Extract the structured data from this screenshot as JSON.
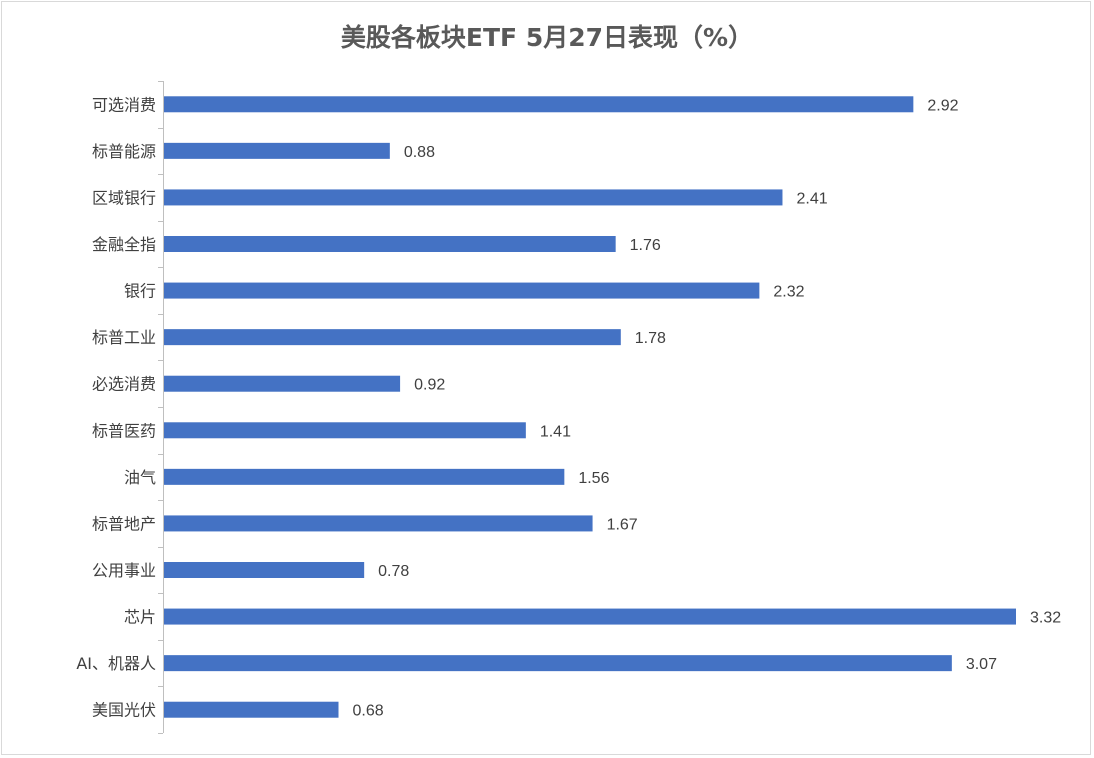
{
  "chart_data": {
    "type": "bar",
    "orientation": "horizontal",
    "title": "美股各板块ETF  5月27日表现（%）",
    "categories": [
      "可选消费",
      "标普能源",
      "区域银行",
      "金融全指",
      "银行",
      "标普工业",
      "必选消费",
      "标普医药",
      "油气",
      "标普地产",
      "公用事业",
      "芯片",
      "AI、机器人",
      "美国光伏"
    ],
    "values": [
      2.92,
      0.88,
      2.41,
      1.76,
      2.32,
      1.78,
      0.92,
      1.41,
      1.56,
      1.67,
      0.78,
      3.32,
      3.07,
      0.68
    ],
    "value_labels": [
      "2.92",
      "0.88",
      "2.41",
      "1.76",
      "2.32",
      "1.78",
      "0.92",
      "1.41",
      "1.56",
      "1.67",
      "0.78",
      "3.32",
      "3.07",
      "0.68"
    ],
    "xlim": [
      0,
      3.32
    ],
    "bar_color": "#4472c4",
    "grid": false,
    "legend": "none"
  }
}
